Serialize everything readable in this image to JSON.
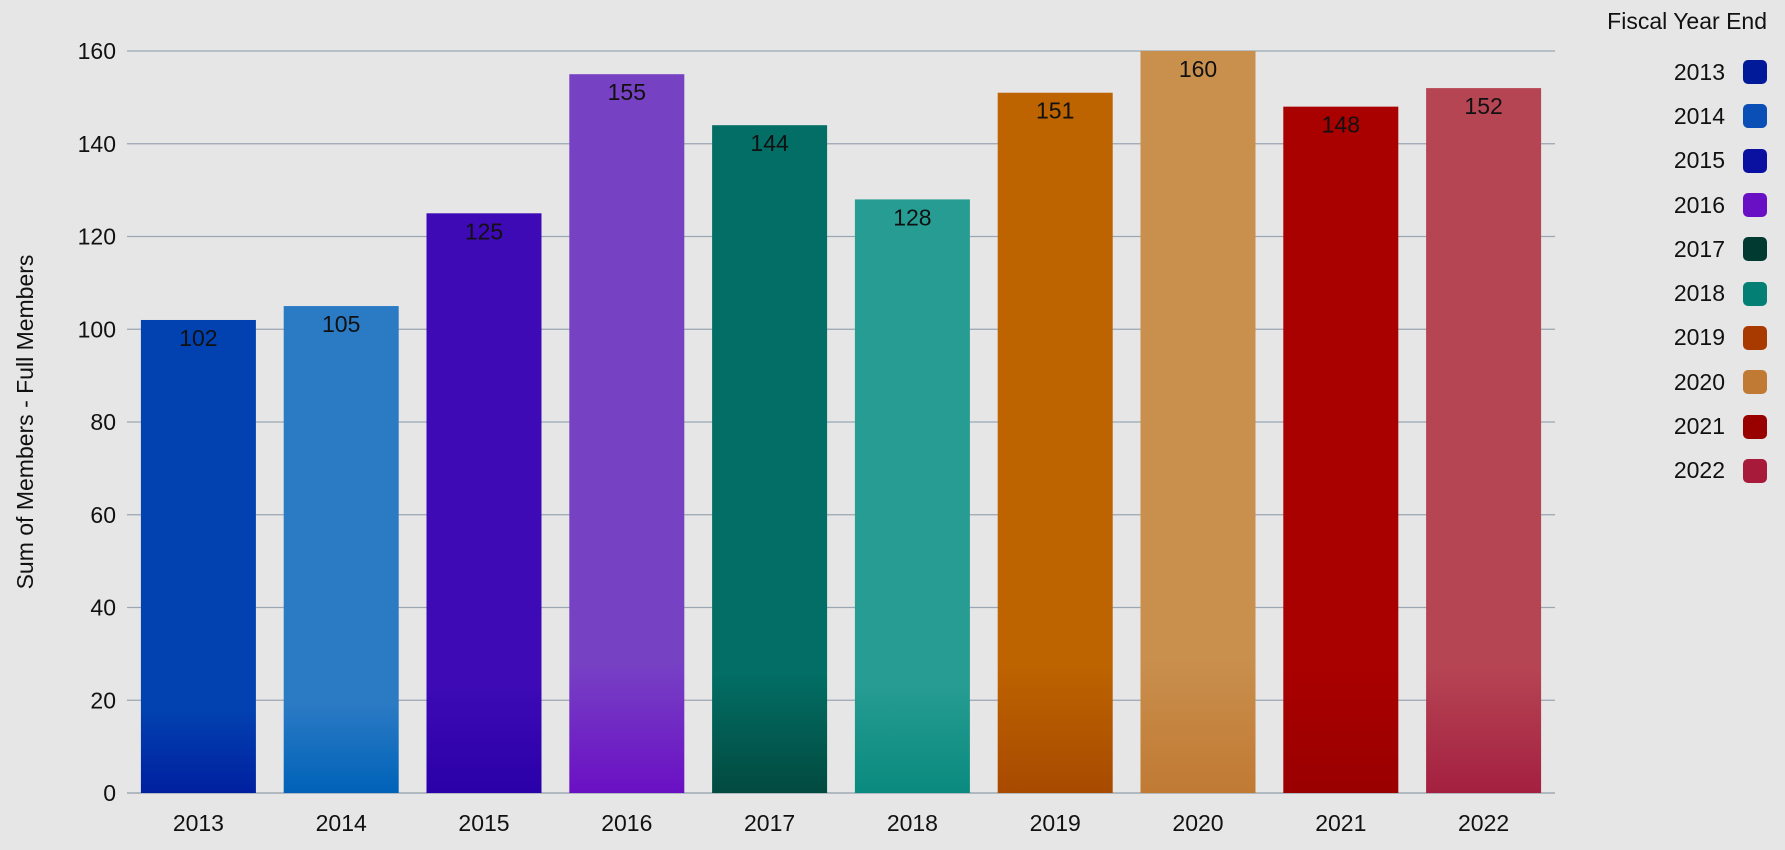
{
  "chart_data": {
    "type": "bar",
    "categories": [
      "2013",
      "2014",
      "2015",
      "2016",
      "2017",
      "2018",
      "2019",
      "2020",
      "2021",
      "2022"
    ],
    "values": [
      102,
      105,
      125,
      155,
      144,
      128,
      151,
      160,
      148,
      152
    ],
    "data_labels": [
      "102",
      "105",
      "125",
      "155",
      "144",
      "128",
      "151",
      "160",
      "148",
      "152"
    ],
    "ylabel": "Sum of Members - Full Members",
    "xlabel": "",
    "ylim": [
      0,
      160
    ],
    "yticks": [
      "0",
      "20",
      "40",
      "60",
      "80",
      "100",
      "120",
      "140",
      "160"
    ],
    "grid": true,
    "legend": {
      "title": "Fiscal Year End",
      "placement": "right",
      "entries": [
        "2013",
        "2014",
        "2015",
        "2016",
        "2017",
        "2018",
        "2019",
        "2020",
        "2021",
        "2022"
      ]
    },
    "bar_colors": [
      "#0242b0",
      "#2a7ac4",
      "#3d0ab5",
      "#7741c4",
      "#026e65",
      "#269c92",
      "#bd6300",
      "#c98f4d",
      "#a90000",
      "#b64554"
    ],
    "bar_bottom_colors": [
      "#0020a0",
      "#0062b8",
      "#2a00a8",
      "#6a10c4",
      "#024a40",
      "#0a8a7e",
      "#a84a00",
      "#c07a34",
      "#9a0000",
      "#a42040"
    ],
    "legend_colors": [
      "#001a9a",
      "#0a4fb5",
      "#0a10a0",
      "#6a10c4",
      "#003a30",
      "#047f73",
      "#a83a00",
      "#c07a34",
      "#990000",
      "#a81a3a"
    ]
  }
}
